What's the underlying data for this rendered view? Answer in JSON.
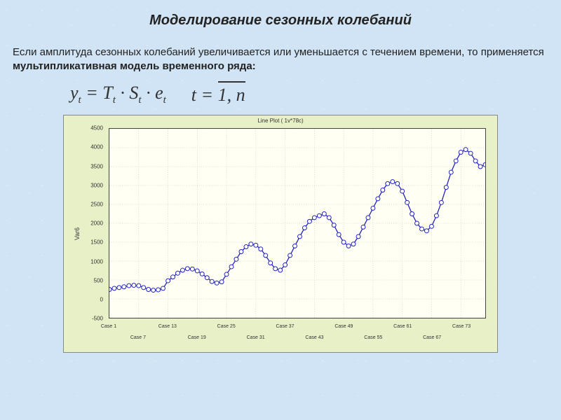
{
  "title": "Моделирование сезонных колебаний",
  "description_plain": "Если амплитуда сезонных колебаний увеличивается или уменьшается с течением времени, то применяется ",
  "description_bold": "мультипликативная модель временного ряда:",
  "formula_main_html": "y<span class=\"sub\">t</span> = T<span class=\"sub\">t</span> · S<span class=\"sub\">t</span> · e<span class=\"sub\">t</span>",
  "formula_range_prefix": "t = ",
  "formula_range_span": "1, n",
  "chart": {
    "type": "line",
    "title": "Line Plot ( 1v*78c)",
    "ylabel": "Var6",
    "background_color": "#e7f0c7",
    "plot_bg_color": "#fffff4",
    "grid_color": "#bcbcbc",
    "line_color": "#2020c0",
    "marker_edge": "#2020c0",
    "marker_fill": "#ffffff",
    "marker_size": 3,
    "line_width": 1.3,
    "ylim": [
      -500,
      4500
    ],
    "ytick_step": 500,
    "yticks": [
      -500,
      0,
      500,
      1000,
      1500,
      2000,
      2500,
      3000,
      3500,
      4000,
      4500
    ],
    "x_count": 78,
    "xticks_row1": [
      {
        "pos": 1,
        "label": "Case 1"
      },
      {
        "pos": 13,
        "label": "Case 13"
      },
      {
        "pos": 25,
        "label": "Case 25"
      },
      {
        "pos": 37,
        "label": "Case 37"
      },
      {
        "pos": 49,
        "label": "Case 49"
      },
      {
        "pos": 61,
        "label": "Case 61"
      },
      {
        "pos": 73,
        "label": "Case 73"
      }
    ],
    "xticks_row2": [
      {
        "pos": 7,
        "label": "Case 7"
      },
      {
        "pos": 19,
        "label": "Case 19"
      },
      {
        "pos": 31,
        "label": "Case 31"
      },
      {
        "pos": 43,
        "label": "Case 43"
      },
      {
        "pos": 55,
        "label": "Case 55"
      },
      {
        "pos": 67,
        "label": "Case 67"
      }
    ],
    "series": [
      250,
      280,
      300,
      320,
      350,
      360,
      350,
      300,
      250,
      230,
      240,
      280,
      480,
      580,
      680,
      760,
      800,
      790,
      740,
      660,
      560,
      460,
      420,
      450,
      650,
      850,
      1050,
      1250,
      1380,
      1450,
      1420,
      1320,
      1150,
      950,
      800,
      760,
      900,
      1150,
      1400,
      1650,
      1880,
      2050,
      2150,
      2200,
      2250,
      2150,
      1950,
      1700,
      1500,
      1400,
      1450,
      1650,
      1900,
      2150,
      2400,
      2650,
      2880,
      3050,
      3100,
      3050,
      2850,
      2550,
      2250,
      2000,
      1850,
      1800,
      1920,
      2200,
      2550,
      2950,
      3350,
      3650,
      3880,
      3950,
      3850,
      3650,
      3500,
      3550
    ]
  }
}
